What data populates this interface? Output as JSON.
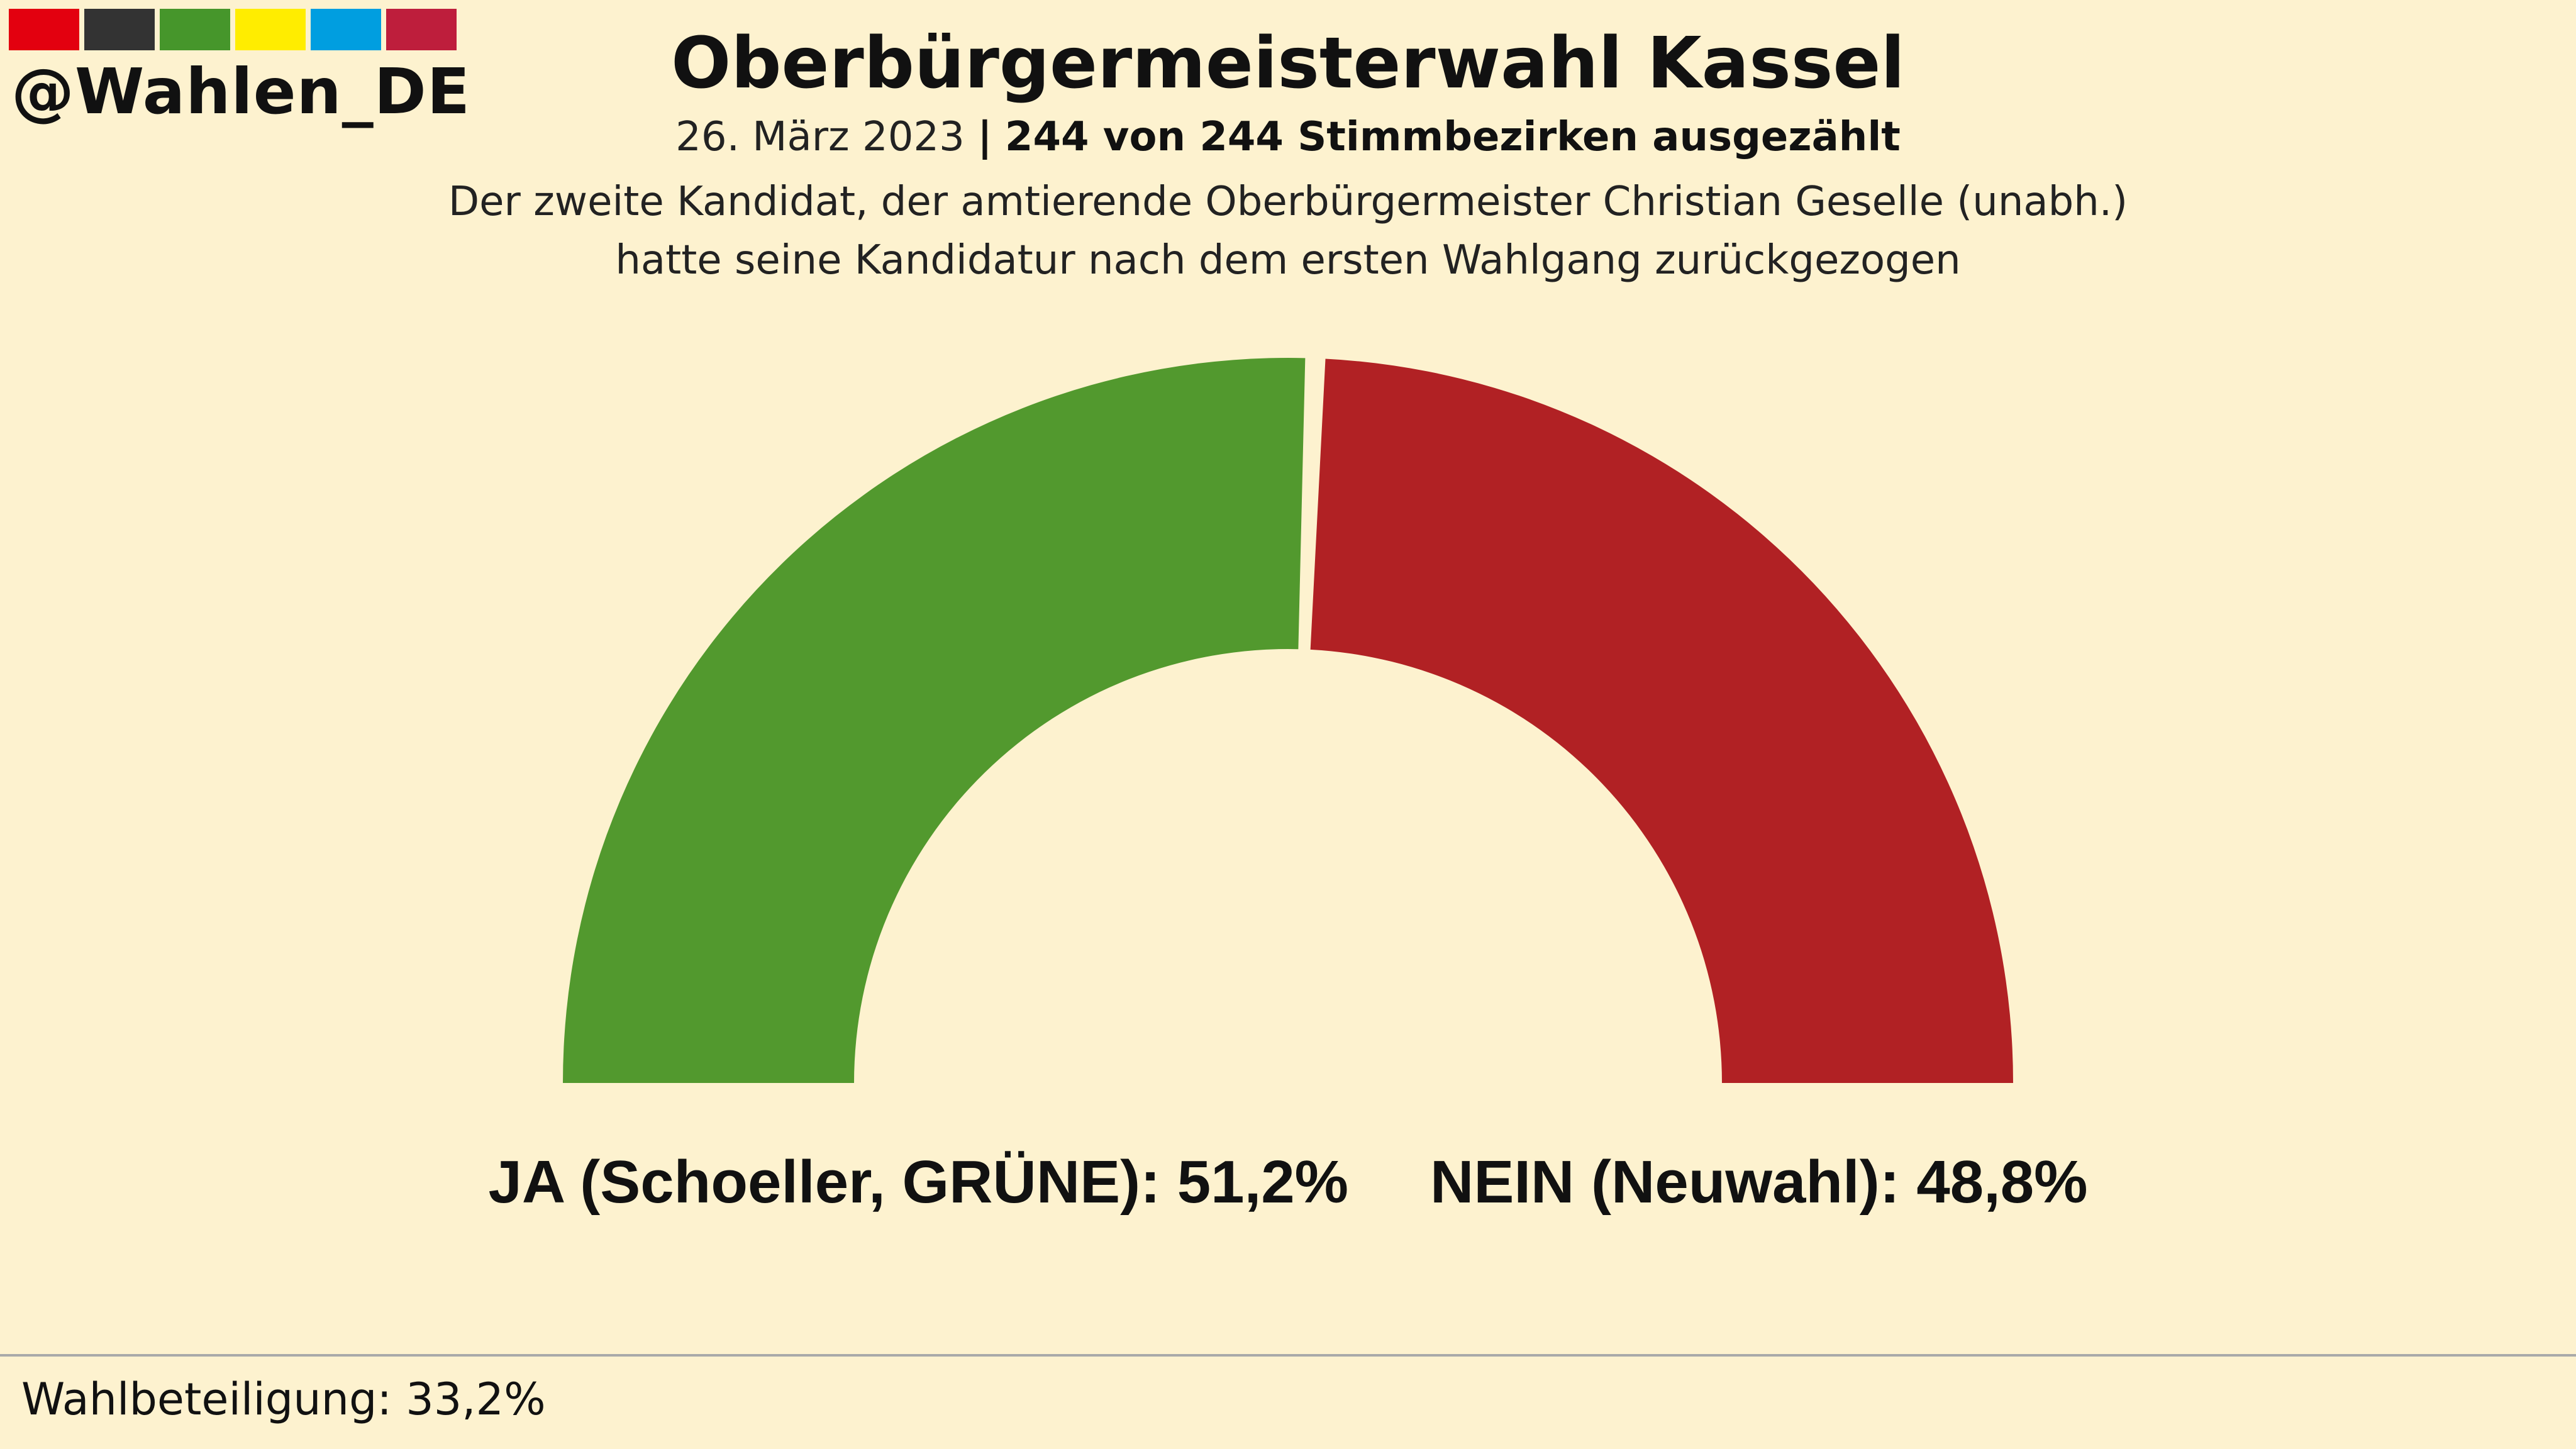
{
  "brand": {
    "handle": "@Wahlen_DE",
    "swatches": [
      "#e3000f",
      "#333333",
      "#46962b",
      "#ffed00",
      "#009ee0",
      "#be1e3c"
    ]
  },
  "header": {
    "title": "Oberbürgermeisterwahl Kassel",
    "date": "26. März 2023",
    "separator": "|",
    "counted": "244 von 244 Stimmbezirken ausgezählt",
    "note_line1": "Der zweite Kandidat, der amtierende Oberbürgermeister Christian Geselle (unabh.)",
    "note_line2": "hatte seine Kandidatur nach dem ersten Wahlgang zurückgezogen"
  },
  "chart_data": {
    "type": "pie",
    "shape": "semicircle-donut",
    "categories": [
      "JA (Schoeller, GRÜNE)",
      "NEIN (Neuwahl)"
    ],
    "values": [
      51.2,
      48.8
    ],
    "value_labels": [
      "51,2%",
      "48,8%"
    ],
    "colors": [
      "#52992e",
      "#b12124"
    ],
    "title": "Oberbürgermeisterwahl Kassel"
  },
  "footer": {
    "turnout": "Wahlbeteiligung: 33,2%"
  }
}
